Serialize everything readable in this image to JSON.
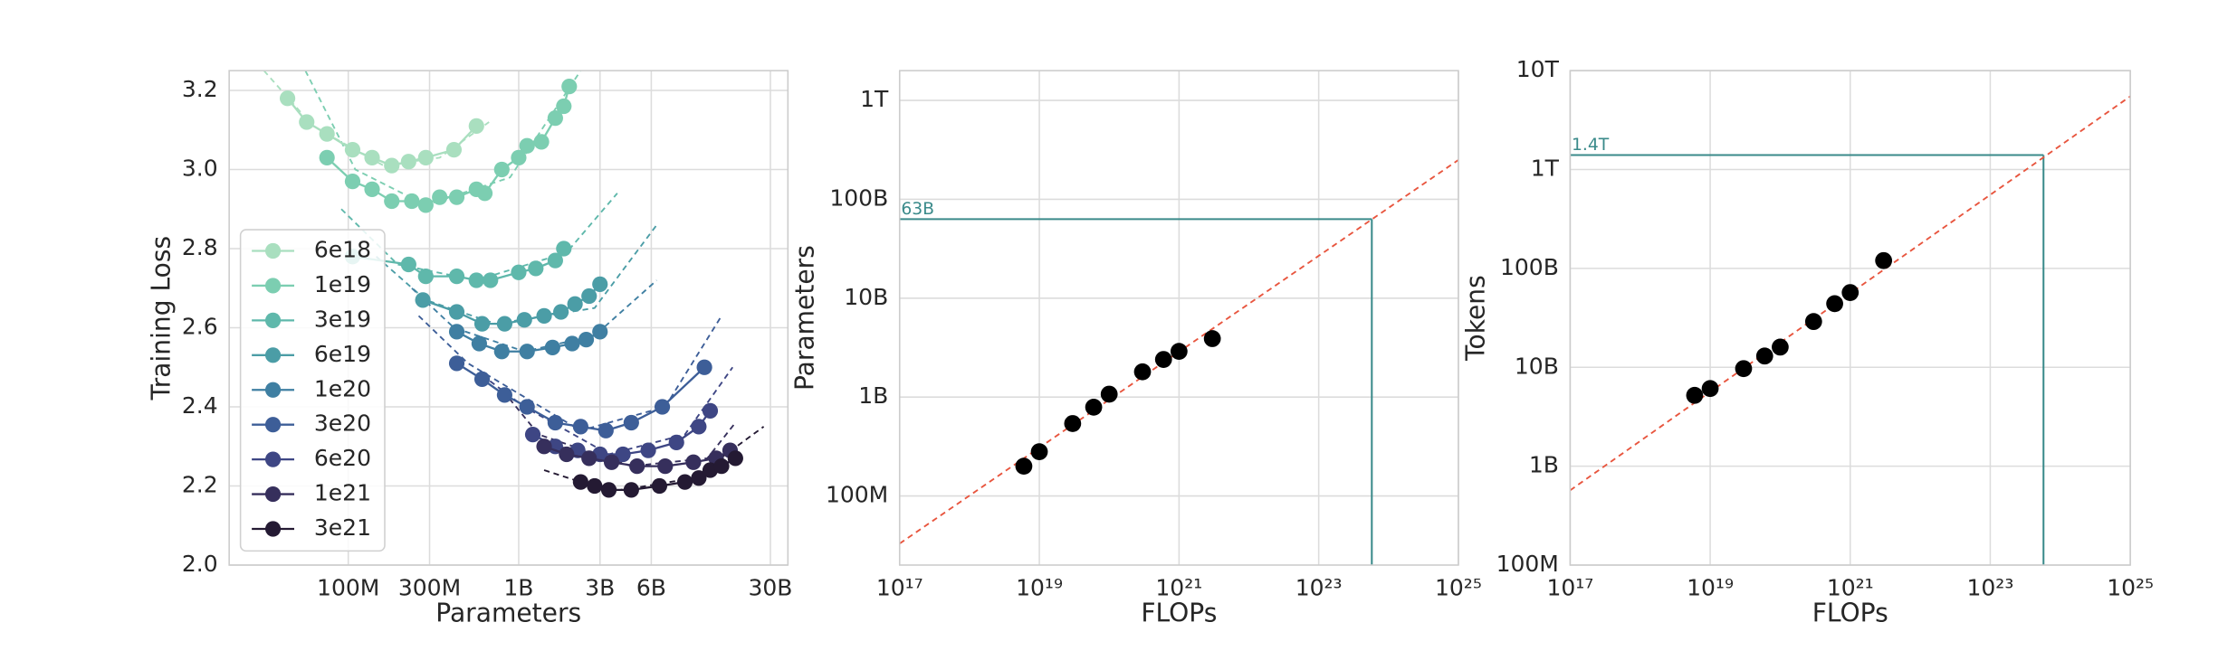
{
  "chart_data": [
    {
      "type": "line",
      "xlabel": "Parameters",
      "ylabel": "Training Loss",
      "xscale": "log",
      "grid": true,
      "legend": "lower left",
      "xlim": [
        20000000.0,
        38000000000.0
      ],
      "xticks": [
        {
          "value": 100000000.0,
          "label": "100M"
        },
        {
          "value": 300000000.0,
          "label": "300M"
        },
        {
          "value": 1000000000.0,
          "label": "1B"
        },
        {
          "value": 3000000000.0,
          "label": "3B"
        },
        {
          "value": 6000000000.0,
          "label": "6B"
        },
        {
          "value": 30000000000.0,
          "label": "30B"
        }
      ],
      "ylim": [
        2.0,
        3.25
      ],
      "yticks": [
        {
          "value": 2.0,
          "label": "2.0"
        },
        2.2,
        2.4,
        2.6,
        2.8,
        {
          "value": 3.0,
          "label": "3.0"
        },
        3.2
      ],
      "series": [
        {
          "name": "6e18",
          "color": "#a9dfbf",
          "x": [
            44000000.0,
            57000000.0,
            75000000.0,
            106000000.0,
            138000000.0,
            180000000.0,
            226000000.0,
            285000000.0,
            417000000.0,
            565000000.0
          ],
          "values": [
            3.18,
            3.12,
            3.09,
            3.05,
            3.03,
            3.01,
            3.02,
            3.03,
            3.05,
            3.11
          ],
          "fit": {
            "x": [
              32000000.0,
              62000000.0,
              161000000.0,
              344000000.0,
              670000000.0
            ],
            "values": [
              3.25,
              3.11,
              3.01,
              3.03,
              3.12
            ]
          }
        },
        {
          "name": "1e19",
          "color": "#7cceb1",
          "x": [
            75000000.0,
            106000000.0,
            138000000.0,
            180000000.0,
            236000000.0,
            285000000.0,
            344000000.0,
            433000000.0,
            565000000.0,
            633000000.0,
            796000000.0,
            1000000000.0,
            1120000000.0,
            1360000000.0,
            1640000000.0,
            1840000000.0,
            1980000000.0
          ],
          "values": [
            3.03,
            2.97,
            2.95,
            2.92,
            2.92,
            2.91,
            2.93,
            2.93,
            2.95,
            2.94,
            3.0,
            3.03,
            3.06,
            3.07,
            3.13,
            3.16,
            3.21
          ],
          "fit": {
            "x": [
              56000000.0,
              110000000.0,
              285000000.0,
              890000000.0,
              2310000000.0
            ],
            "values": [
              3.25,
              3.0,
              2.91,
              2.98,
              3.25
            ]
          }
        },
        {
          "name": "3e19",
          "color": "#5fb8ab",
          "x": [
            106000000.0,
            226000000.0,
            285000000.0,
            433000000.0,
            565000000.0,
            683000000.0,
            1000000000.0,
            1260000000.0,
            1640000000.0,
            1840000000.0
          ],
          "values": [
            2.78,
            2.76,
            2.73,
            2.73,
            2.72,
            2.72,
            2.74,
            2.75,
            2.77,
            2.8
          ],
          "fit": {
            "x": [
              91000000.0,
              195000000.0,
              565000000.0,
              1910000000.0,
              3790000000.0
            ],
            "values": [
              2.9,
              2.76,
              2.72,
              2.79,
              2.94
            ]
          }
        },
        {
          "name": "6e19",
          "color": "#4b9da6",
          "x": [
            274000000.0,
            433000000.0,
            610000000.0,
            827000000.0,
            1080000000.0,
            1410000000.0,
            1770000000.0,
            2140000000.0,
            2590000000.0,
            3000000000.0
          ],
          "values": [
            2.67,
            2.64,
            2.61,
            2.61,
            2.62,
            2.63,
            2.64,
            2.66,
            2.68,
            2.71
          ],
          "fit": {
            "x": [
              146000000.0,
              285000000.0,
              736000000.0,
              2790000000.0,
              6460000000.0
            ],
            "values": [
              2.78,
              2.67,
              2.61,
              2.65,
              2.86
            ]
          }
        },
        {
          "name": "1e20",
          "color": "#3f7fa2",
          "x": [
            433000000.0,
            587000000.0,
            796000000.0,
            1120000000.0,
            1580000000.0,
            2060000000.0,
            2490000000.0,
            3000000000.0
          ],
          "values": [
            2.59,
            2.56,
            2.54,
            2.54,
            2.55,
            2.56,
            2.57,
            2.59
          ],
          "fit": {
            "x": [
              236000000.0,
              417000000.0,
              1080000000.0,
              2790000000.0,
              6460000000.0
            ],
            "values": [
              2.7,
              2.6,
              2.54,
              2.58,
              2.72
            ]
          }
        },
        {
          "name": "3e20",
          "color": "#3d5e98",
          "x": [
            433000000.0,
            610000000.0,
            827000000.0,
            1120000000.0,
            1640000000.0,
            2310000000.0,
            3250000000.0,
            4580000000.0,
            6960000000.0,
            12300000000.0
          ],
          "values": [
            2.51,
            2.47,
            2.43,
            2.4,
            2.36,
            2.35,
            2.34,
            2.36,
            2.4,
            2.5
          ],
          "fit": {
            "x": [
              259000000.0,
              504000000.0,
              2310000000.0,
              7240000000.0,
              15500000000.0
            ],
            "values": [
              2.63,
              2.51,
              2.34,
              2.4,
              2.63
            ]
          }
        },
        {
          "name": "6e20",
          "color": "#3e4684",
          "x": [
            1210000000.0,
            1640000000.0,
            2220000000.0,
            3000000000.0,
            4090000000.0,
            5760000000.0,
            8430000000.0,
            11400000000.0,
            13300000000.0
          ],
          "values": [
            2.33,
            2.3,
            2.29,
            2.28,
            2.28,
            2.29,
            2.31,
            2.35,
            2.39
          ],
          "fit": {
            "x": [
              610000000.0,
              1080000000.0,
              3380000000.0,
              9450000000.0,
              18000000000.0
            ],
            "values": [
              2.48,
              2.4,
              2.28,
              2.33,
              2.5
            ]
          }
        },
        {
          "name": "1e21",
          "color": "#362f5c",
          "x": [
            1410000000.0,
            1910000000.0,
            2590000000.0,
            3510000000.0,
            4950000000.0,
            7240000000.0,
            10600000000.0,
            14400000000.0,
            17400000000.0
          ],
          "values": [
            2.3,
            2.28,
            2.27,
            2.26,
            2.25,
            2.25,
            2.26,
            2.27,
            2.29
          ],
          "fit": {
            "x": [
              811000000.0,
              1310000000.0,
              4580000000.0,
              12800000000.0,
              18700000000.0
            ],
            "values": [
              2.44,
              2.33,
              2.25,
              2.27,
              2.36
            ]
          }
        },
        {
          "name": "3e21",
          "color": "#241a33",
          "x": [
            2310000000.0,
            2790000000.0,
            3380000000.0,
            4580000000.0,
            6700000000.0,
            9450000000.0,
            11400000000.0,
            13300000000.0,
            15500000000.0,
            18700000000.0
          ],
          "values": [
            2.21,
            2.2,
            2.19,
            2.19,
            2.2,
            2.21,
            2.22,
            2.24,
            2.25,
            2.27
          ],
          "fit": {
            "x": [
              1410000000.0,
              2310000000.0,
              4090000000.0,
              10600000000.0,
              27400000000.0
            ],
            "values": [
              2.24,
              2.21,
              2.19,
              2.22,
              2.35
            ]
          }
        }
      ]
    },
    {
      "type": "scatter",
      "xlabel": "FLOPs",
      "ylabel": "Parameters",
      "xscale": "log",
      "yscale": "log",
      "grid": true,
      "color": "#000000",
      "xlim": [
        1e+17,
        1e+25
      ],
      "xticks": [
        {
          "value": 1e+17,
          "label": "10¹⁷"
        },
        {
          "value": 1e+19,
          "label": "10¹⁹"
        },
        {
          "value": 1e+21,
          "label": "10²¹"
        },
        {
          "value": 1e+23,
          "label": "10²³"
        },
        {
          "value": 1e+25,
          "label": "10²⁵"
        }
      ],
      "ylim": [
        20000000.0,
        2000000000000.0
      ],
      "yticks": [
        {
          "value": 100000000.0,
          "label": "100M"
        },
        {
          "value": 1000000000.0,
          "label": "1B"
        },
        {
          "value": 10000000000.0,
          "label": "10B"
        },
        {
          "value": 100000000000.0,
          "label": "100B"
        },
        {
          "value": 1000000000000.0,
          "label": "1T"
        }
      ],
      "x": [
        6e+18,
        1e+19,
        3e+19,
        6e+19,
        1e+20,
        3e+20,
        6e+20,
        1e+21,
        3e+21
      ],
      "values": [
        200000000.0,
        280000000.0,
        540000000.0,
        790000000.0,
        1070000000.0,
        1800000000.0,
        2400000000.0,
        2900000000.0,
        3900000000.0
      ],
      "fit": {
        "color": "#e8553e",
        "x": [
          1e+17,
          1e+25
        ],
        "values": [
          33000000.0,
          250000000000.0
        ]
      },
      "annotation": {
        "text": "63B",
        "color": "#3a8a8a",
        "x": 5.76e+23,
        "y": 63000000000.0
      }
    },
    {
      "type": "scatter",
      "xlabel": "FLOPs",
      "ylabel": "Tokens",
      "xscale": "log",
      "yscale": "log",
      "grid": true,
      "color": "#000000",
      "xlim": [
        1e+17,
        1e+25
      ],
      "xticks": [
        {
          "value": 1e+17,
          "label": "10¹⁷"
        },
        {
          "value": 1e+19,
          "label": "10¹⁹"
        },
        {
          "value": 1e+21,
          "label": "10²¹"
        },
        {
          "value": 1e+23,
          "label": "10²³"
        },
        {
          "value": 1e+25,
          "label": "10²⁵"
        }
      ],
      "ylim": [
        100000000.0,
        10000000000000.0
      ],
      "yticks": [
        {
          "value": 100000000.0,
          "label": "100M"
        },
        {
          "value": 1000000000.0,
          "label": "1B"
        },
        {
          "value": 10000000000.0,
          "label": "10B"
        },
        {
          "value": 100000000000.0,
          "label": "100B"
        },
        {
          "value": 1000000000000.0,
          "label": "1T"
        },
        {
          "value": 10000000000000.0,
          "label": "10T"
        }
      ],
      "x": [
        6e+18,
        1e+19,
        3e+19,
        6e+19,
        1e+20,
        3e+20,
        6e+20,
        1e+21,
        3e+21
      ],
      "values": [
        5200000000.0,
        6100000000.0,
        9700000000.0,
        13000000000.0,
        16000000000.0,
        29000000000.0,
        44000000000.0,
        57000000000.0,
        120000000000.0
      ],
      "fit": {
        "color": "#e8553e",
        "x": [
          1e+17,
          1e+25
        ],
        "values": [
          570000000.0,
          5500000000000.0
        ]
      },
      "annotation": {
        "text": "1.4T",
        "color": "#3a8a8a",
        "x": 5.76e+23,
        "y": 1400000000000.0
      }
    }
  ]
}
